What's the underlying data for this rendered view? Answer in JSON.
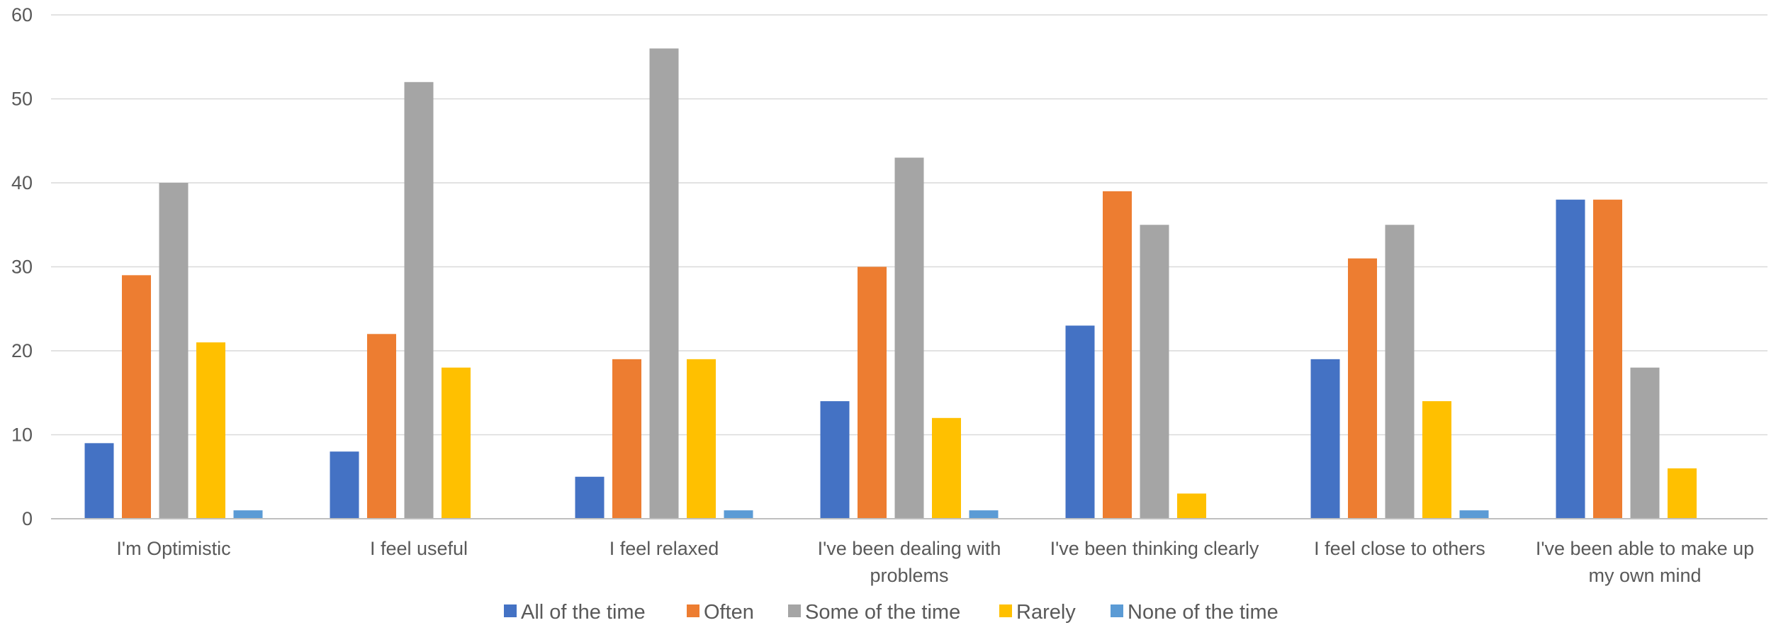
{
  "chart_data": {
    "type": "bar",
    "title": "",
    "xlabel": "",
    "ylabel": "",
    "ylim": [
      0,
      60
    ],
    "yticks": [
      0,
      10,
      20,
      30,
      40,
      50,
      60
    ],
    "grid": true,
    "legend_position": "bottom",
    "categories": [
      [
        "I'm Optimistic"
      ],
      [
        "I feel useful"
      ],
      [
        "I feel relaxed"
      ],
      [
        "I've been dealing with",
        "problems"
      ],
      [
        "I've been thinking clearly"
      ],
      [
        "I feel close to others"
      ],
      [
        "I've been able to make up",
        "my own mind"
      ]
    ],
    "series": [
      {
        "name": "All of the time",
        "color": "#4472C4",
        "values": [
          9,
          8,
          5,
          14,
          23,
          19,
          38
        ]
      },
      {
        "name": "Often",
        "color": "#ED7D31",
        "values": [
          29,
          22,
          19,
          30,
          39,
          31,
          38
        ]
      },
      {
        "name": "Some of the time",
        "color": "#A5A5A5",
        "values": [
          40,
          52,
          56,
          43,
          35,
          35,
          18
        ]
      },
      {
        "name": "Rarely",
        "color": "#FFC000",
        "values": [
          21,
          18,
          19,
          12,
          3,
          14,
          6
        ]
      },
      {
        "name": "None of the time",
        "color": "#5B9BD5",
        "values": [
          1,
          0,
          1,
          1,
          0,
          1,
          0
        ]
      }
    ],
    "colors": {
      "grid": "#D9D9D9",
      "axis": "#BFBFBF",
      "text": "#595959"
    }
  }
}
